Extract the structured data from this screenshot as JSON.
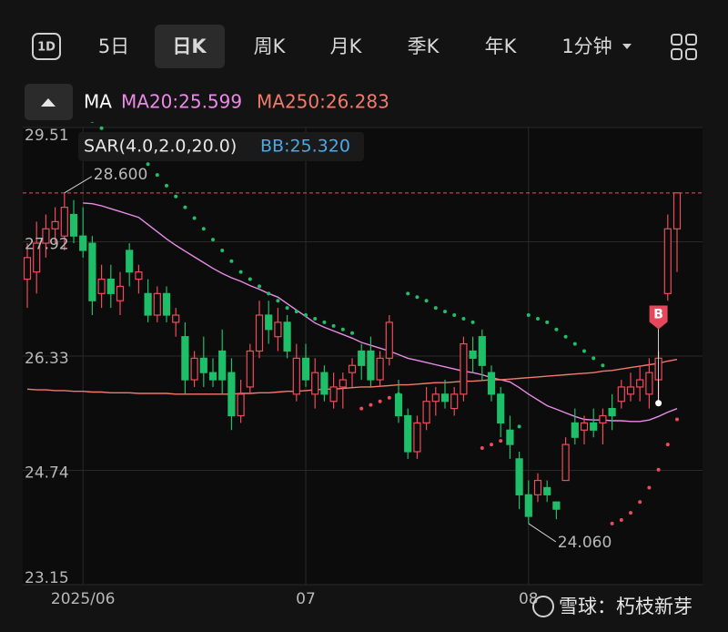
{
  "tabs": [
    "5日",
    "日K",
    "周K",
    "月K",
    "季K",
    "年K",
    "1分钟"
  ],
  "day_icon": "1D",
  "selected_tab": 1,
  "watermark": "雪球：朽枝新芽",
  "chart_data": {
    "type": "candlestick",
    "legend": [
      "MA",
      "MA20:25.599",
      "MA250:26.283"
    ],
    "indicator_legend": [
      "SAR(4.0,2.0,20.0)",
      "BB:25.320"
    ],
    "high_label": "28.600",
    "low_label": "24.060",
    "signals": [
      {
        "label": "B",
        "index": 68
      }
    ],
    "up_color": "#ee4b5c",
    "down_color": "#1fbf69",
    "categories": [
      null,
      null,
      null,
      null,
      null,
      null,
      "2025/06",
      null,
      null,
      null,
      null,
      null,
      null,
      null,
      null,
      null,
      null,
      null,
      null,
      null,
      null,
      null,
      null,
      null,
      null,
      null,
      null,
      null,
      null,
      null,
      "07",
      null,
      null,
      null,
      null,
      null,
      null,
      null,
      null,
      null,
      null,
      null,
      null,
      null,
      null,
      null,
      null,
      null,
      null,
      null,
      null,
      null,
      null,
      null,
      "08",
      null,
      null,
      null,
      null,
      null,
      null,
      null,
      null,
      null,
      null,
      null,
      null,
      null,
      null,
      null,
      null
    ],
    "ylim": [
      23.15,
      29.51
    ],
    "yticks": [
      29.51,
      27.92,
      26.33,
      24.74,
      23.15
    ],
    "ohlc": [
      [
        27.4,
        27.9,
        27.0,
        27.7
      ],
      [
        27.5,
        28.2,
        27.2,
        27.9
      ],
      [
        27.9,
        28.3,
        27.7,
        28.1
      ],
      [
        28.1,
        28.4,
        27.9,
        28.2
      ],
      [
        28.0,
        28.6,
        27.8,
        28.4
      ],
      [
        28.3,
        28.5,
        27.9,
        28.0
      ],
      [
        28.0,
        28.4,
        27.7,
        27.8
      ],
      [
        27.9,
        28.0,
        26.9,
        27.1
      ],
      [
        27.2,
        27.6,
        27.0,
        27.4
      ],
      [
        27.4,
        27.6,
        27.0,
        27.2
      ],
      [
        27.1,
        27.5,
        26.9,
        27.3
      ],
      [
        27.8,
        27.9,
        27.3,
        27.5
      ],
      [
        27.4,
        27.6,
        27.2,
        27.5
      ],
      [
        27.2,
        27.4,
        26.8,
        26.9
      ],
      [
        26.9,
        27.3,
        26.8,
        27.2
      ],
      [
        27.2,
        27.3,
        26.8,
        26.9
      ],
      [
        26.8,
        27.0,
        26.6,
        26.9
      ],
      [
        26.6,
        26.8,
        25.8,
        26.0
      ],
      [
        26.0,
        26.4,
        25.9,
        26.3
      ],
      [
        26.3,
        26.6,
        25.9,
        26.1
      ],
      [
        26.1,
        26.3,
        25.9,
        26.0
      ],
      [
        26.4,
        26.7,
        25.8,
        26.0
      ],
      [
        26.1,
        26.3,
        25.3,
        25.5
      ],
      [
        25.5,
        26.0,
        25.4,
        25.8
      ],
      [
        25.9,
        26.5,
        25.8,
        26.4
      ],
      [
        26.4,
        27.1,
        26.3,
        26.9
      ],
      [
        26.9,
        27.1,
        26.5,
        26.7
      ],
      [
        26.6,
        27.0,
        26.4,
        26.8
      ],
      [
        26.8,
        26.9,
        26.3,
        26.4
      ],
      [
        25.8,
        26.5,
        25.7,
        26.3
      ],
      [
        26.3,
        26.5,
        25.9,
        26.0
      ],
      [
        25.8,
        26.3,
        25.6,
        26.1
      ],
      [
        26.1,
        26.2,
        25.7,
        25.8
      ],
      [
        25.7,
        26.1,
        25.6,
        25.9
      ],
      [
        25.9,
        26.1,
        25.6,
        26.0
      ],
      [
        26.1,
        26.3,
        25.9,
        26.2
      ],
      [
        26.4,
        26.5,
        26.0,
        26.2
      ],
      [
        26.4,
        26.6,
        25.9,
        26.0
      ],
      [
        26.0,
        26.4,
        25.9,
        26.3
      ],
      [
        26.3,
        26.9,
        26.2,
        26.8
      ],
      [
        25.8,
        26.0,
        25.4,
        25.5
      ],
      [
        25.5,
        25.6,
        24.9,
        25.0
      ],
      [
        25.0,
        25.5,
        24.9,
        25.4
      ],
      [
        25.4,
        25.9,
        25.3,
        25.7
      ],
      [
        25.7,
        25.9,
        25.5,
        25.8
      ],
      [
        25.8,
        26.0,
        25.6,
        25.7
      ],
      [
        25.6,
        25.9,
        25.5,
        25.8
      ],
      [
        25.8,
        26.6,
        25.7,
        26.5
      ],
      [
        26.4,
        26.6,
        26.1,
        26.3
      ],
      [
        26.6,
        26.7,
        26.0,
        26.2
      ],
      [
        26.1,
        26.2,
        25.7,
        25.8
      ],
      [
        25.8,
        25.9,
        25.2,
        25.4
      ],
      [
        25.3,
        25.5,
        24.9,
        25.1
      ],
      [
        24.9,
        25.0,
        24.2,
        24.4
      ],
      [
        24.4,
        24.6,
        24.0,
        24.1
      ],
      [
        24.4,
        24.7,
        24.3,
        24.6
      ],
      [
        24.5,
        24.6,
        24.3,
        24.4
      ],
      [
        24.3,
        24.3,
        24.06,
        24.2
      ],
      [
        24.6,
        25.2,
        24.6,
        25.1
      ],
      [
        25.4,
        25.6,
        25.1,
        25.2
      ],
      [
        25.3,
        25.5,
        25.1,
        25.4
      ],
      [
        25.4,
        25.6,
        25.2,
        25.3
      ],
      [
        25.4,
        25.6,
        25.1,
        25.5
      ],
      [
        25.6,
        25.8,
        25.3,
        25.5
      ],
      [
        25.7,
        26.0,
        25.6,
        25.9
      ],
      [
        25.8,
        26.1,
        25.7,
        25.9
      ],
      [
        25.9,
        26.2,
        25.7,
        26.0
      ],
      [
        25.8,
        26.3,
        25.6,
        26.1
      ],
      [
        26.0,
        26.4,
        25.7,
        26.3
      ],
      [
        27.2,
        28.3,
        27.1,
        28.1
      ],
      [
        28.1,
        28.6,
        27.5,
        28.6
      ]
    ],
    "series": [
      {
        "name": "MA20",
        "color": "#e98be6",
        "values": [
          null,
          null,
          null,
          null,
          null,
          null,
          28.46,
          28.45,
          28.42,
          28.38,
          28.34,
          28.3,
          28.26,
          28.16,
          28.06,
          27.96,
          27.87,
          27.79,
          27.71,
          27.63,
          27.55,
          27.48,
          27.42,
          27.37,
          27.31,
          27.26,
          27.2,
          27.15,
          27.06,
          26.97,
          26.88,
          26.79,
          26.73,
          26.68,
          26.63,
          26.58,
          26.52,
          26.48,
          26.44,
          26.4,
          26.35,
          26.3,
          26.27,
          26.24,
          26.21,
          26.18,
          26.15,
          26.12,
          26.1,
          26.07,
          26.03,
          26.0,
          25.97,
          25.89,
          25.8,
          25.72,
          25.64,
          25.59,
          25.54,
          25.49,
          25.45,
          25.44,
          25.44,
          25.43,
          25.43,
          25.42,
          25.42,
          25.44,
          25.49,
          25.55,
          25.599
        ]
      },
      {
        "name": "MA250",
        "color": "#f27a6c",
        "values": [
          25.87,
          25.86,
          25.86,
          25.85,
          25.85,
          25.84,
          25.84,
          25.83,
          25.83,
          25.82,
          25.82,
          25.82,
          25.81,
          25.81,
          25.81,
          25.81,
          25.8,
          25.8,
          25.8,
          25.8,
          25.8,
          25.8,
          25.8,
          25.81,
          25.81,
          25.82,
          25.82,
          25.83,
          25.84,
          25.84,
          25.85,
          25.86,
          25.87,
          25.87,
          25.88,
          25.89,
          25.9,
          25.9,
          25.91,
          25.92,
          25.93,
          25.93,
          25.94,
          25.95,
          25.96,
          25.96,
          25.97,
          25.98,
          25.98,
          25.99,
          26.0,
          26.0,
          26.01,
          26.02,
          26.03,
          26.04,
          26.05,
          26.06,
          26.07,
          26.08,
          26.09,
          26.1,
          26.12,
          26.13,
          26.15,
          26.17,
          26.19,
          26.21,
          26.23,
          26.26,
          26.283
        ]
      }
    ],
    "sar": [
      null,
      null,
      null,
      null,
      null,
      null,
      29.7,
      29.6,
      29.5,
      29.4,
      29.3,
      29.2,
      29.1,
      29.0,
      28.85,
      28.7,
      28.55,
      28.4,
      28.25,
      28.1,
      27.95,
      27.8,
      27.65,
      27.5,
      27.4,
      27.3,
      27.2,
      27.1,
      27.0,
      26.95,
      26.9,
      26.85,
      26.8,
      26.75,
      26.7,
      26.65,
      25.6,
      25.65,
      25.7,
      25.75,
      25.8,
      27.2,
      27.15,
      27.1,
      27.0,
      26.95,
      26.9,
      26.85,
      26.8,
      25.05,
      25.1,
      25.15,
      25.25,
      25.35,
      26.9,
      26.85,
      26.8,
      26.7,
      26.6,
      26.5,
      26.4,
      26.3,
      26.2,
      24.0,
      24.05,
      24.15,
      24.3,
      24.5,
      24.75,
      25.1,
      25.45
    ]
  }
}
